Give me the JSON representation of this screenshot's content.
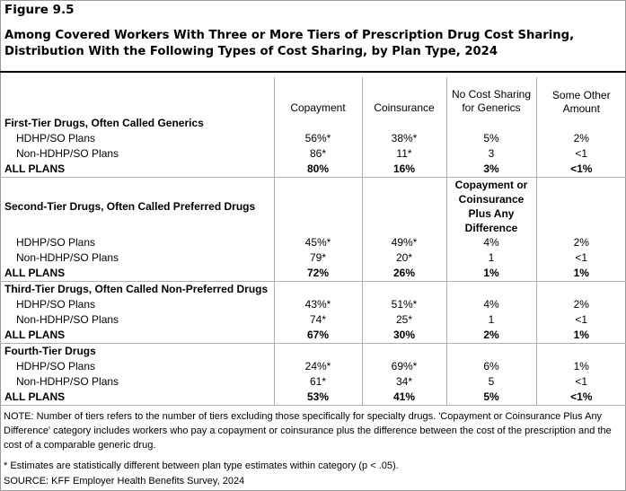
{
  "figure_label": "Figure 9.5",
  "title": "Among Covered Workers With Three or More Tiers of Prescription Drug Cost Sharing, Distribution With the Following Types of Cost Sharing, by Plan Type, 2024",
  "columns": [
    "Copayment",
    "Coinsurance",
    "No Cost Sharing for Generics",
    "Some Other Amount"
  ],
  "sections": [
    {
      "title": "First-Tier Drugs, Often Called Generics",
      "col3_header": "",
      "rows": [
        {
          "label": "HDHP/SO Plans",
          "values": [
            "56%*",
            "38%*",
            "5%",
            "2%"
          ]
        },
        {
          "label": "Non-HDHP/SO Plans",
          "values": [
            "86*",
            "11*",
            "3",
            "<1"
          ]
        },
        {
          "label": "ALL PLANS",
          "values": [
            "80%",
            "16%",
            "3%",
            "<1%"
          ]
        }
      ]
    },
    {
      "title": "Second-Tier Drugs, Often Called Preferred Drugs",
      "col3_header": "Copayment or Coinsurance Plus Any Difference",
      "rows": [
        {
          "label": "HDHP/SO Plans",
          "values": [
            "45%*",
            "49%*",
            "4%",
            "2%"
          ]
        },
        {
          "label": "Non-HDHP/SO Plans",
          "values": [
            "79*",
            "20*",
            "1",
            "<1"
          ]
        },
        {
          "label": "ALL PLANS",
          "values": [
            "72%",
            "26%",
            "1%",
            "1%"
          ]
        }
      ]
    },
    {
      "title": "Third-Tier Drugs, Often Called Non-Preferred Drugs",
      "col3_header": "",
      "rows": [
        {
          "label": "HDHP/SO Plans",
          "values": [
            "43%*",
            "51%*",
            "4%",
            "2%"
          ]
        },
        {
          "label": "Non-HDHP/SO Plans",
          "values": [
            "74*",
            "25*",
            "1",
            "<1"
          ]
        },
        {
          "label": "ALL PLANS",
          "values": [
            "67%",
            "30%",
            "2%",
            "1%"
          ]
        }
      ]
    },
    {
      "title": "Fourth-Tier Drugs",
      "col3_header": "",
      "rows": [
        {
          "label": "HDHP/SO Plans",
          "values": [
            "24%*",
            "69%*",
            "6%",
            "1%"
          ]
        },
        {
          "label": "Non-HDHP/SO Plans",
          "values": [
            "61*",
            "34*",
            "5",
            "<1"
          ]
        },
        {
          "label": "ALL PLANS",
          "values": [
            "53%",
            "41%",
            "5%",
            "<1%"
          ]
        }
      ]
    }
  ],
  "note": "NOTE: Number of tiers refers to the number of tiers excluding those specifically for specialty drugs. 'Copayment or Coinsurance Plus Any Difference' category includes workers who pay a copayment or coinsurance plus the difference between the cost of the prescription and the cost of a comparable generic drug.",
  "significance_note": " * Estimates are statistically different between plan type estimates within category (p < .05).",
  "source": "SOURCE: KFF Employer Health Benefits Survey, 2024"
}
